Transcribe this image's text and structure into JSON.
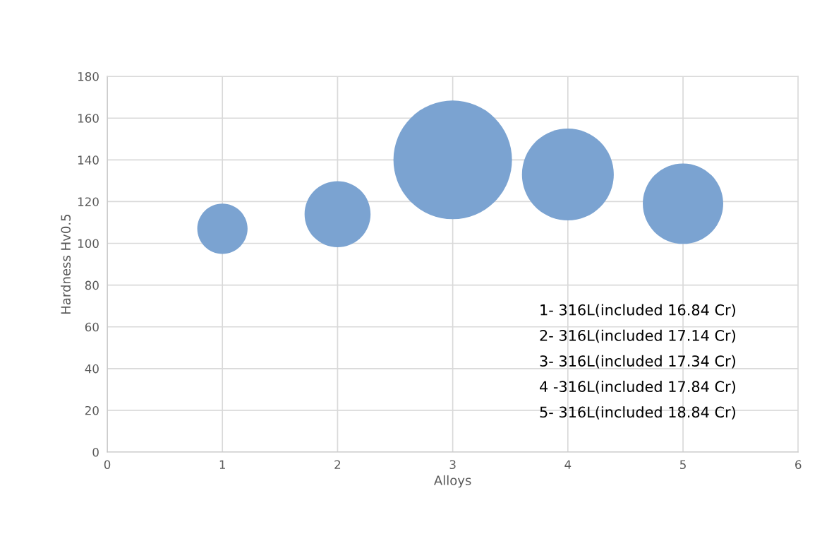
{
  "chart_data": {
    "type": "bubble",
    "xlabel": "Alloys",
    "ylabel": "Hardness Hv0.5",
    "x": [
      1,
      2,
      3,
      4,
      5
    ],
    "series": [
      {
        "color": "#7ba3d1",
        "values": [
          107,
          114,
          140,
          133,
          119
        ],
        "sizes": [
          0.18,
          0.31,
          1,
          0.6,
          0.46
        ]
      }
    ],
    "xlim": [
      0,
      6
    ],
    "xticks": [
      0,
      1,
      2,
      3,
      4,
      5,
      6
    ],
    "ylim": [
      0,
      180
    ],
    "yticks": [
      0,
      20,
      40,
      60,
      80,
      100,
      120,
      140,
      160,
      180
    ],
    "grid": true,
    "annotations": [
      "1- 316L(included 16.84 Cr)",
      "2- 316L(included 17.14 Cr)",
      "3- 316L(included 17.34 Cr)",
      "4 -316L(included 17.84 Cr)",
      "5- 316L(included 18.84 Cr)"
    ]
  }
}
